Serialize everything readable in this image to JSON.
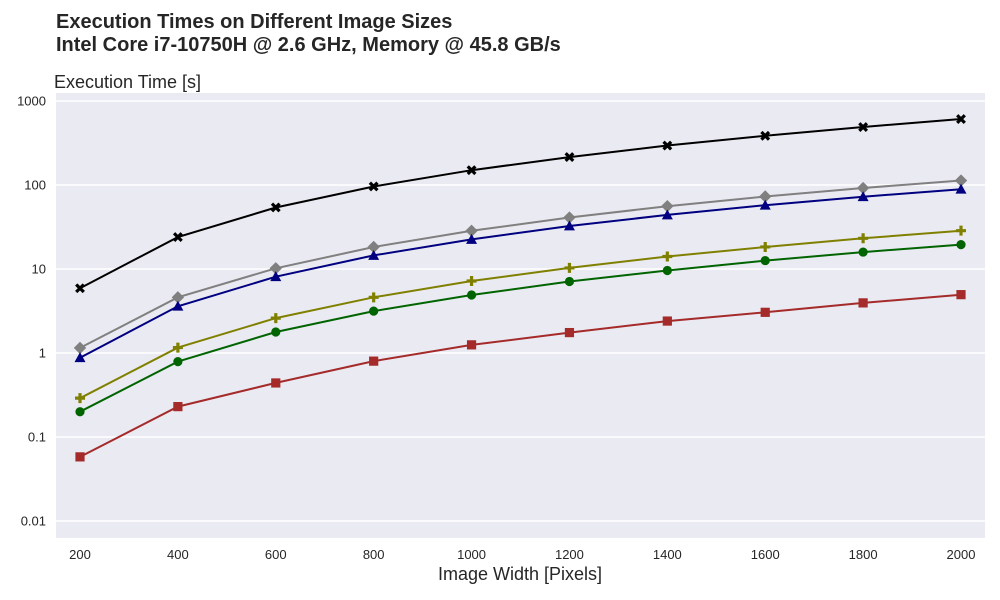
{
  "chart_data": {
    "type": "line",
    "title_line1": "Execution Times on Different Image Sizes",
    "title_line2": "Intel Core i7-10750H @ 2.6 GHz, Memory @ 45.8 GB/s",
    "xlabel": "Image Width [Pixels]",
    "ylabel": "Execution Time [s]",
    "yscale": "log",
    "ylim": [
      0.01,
      1000
    ],
    "xlim": [
      200,
      2000
    ],
    "grid": true,
    "x": [
      200,
      400,
      600,
      800,
      1000,
      1200,
      1400,
      1600,
      1800,
      2000
    ],
    "x_ticks": [
      "200",
      "400",
      "600",
      "800",
      "1000",
      "1200",
      "1400",
      "1600",
      "1800",
      "2000"
    ],
    "y_ticks": [
      {
        "value": 0.01,
        "label": "0.01"
      },
      {
        "value": 0.1,
        "label": "0.1"
      },
      {
        "value": 1,
        "label": "1"
      },
      {
        "value": 10,
        "label": "10"
      },
      {
        "value": 100,
        "label": "100"
      },
      {
        "value": 1000,
        "label": "1000"
      }
    ],
    "series": [
      {
        "color": "#000000",
        "marker": "x",
        "values": [
          5.9,
          24,
          54,
          96,
          150,
          215,
          295,
          385,
          490,
          610
        ]
      },
      {
        "color": "#808080",
        "marker": "diamond",
        "values": [
          1.15,
          4.6,
          10.2,
          18.3,
          28.5,
          41,
          56,
          73,
          92,
          113
        ]
      },
      {
        "color": "#000080",
        "marker": "triangle",
        "values": [
          0.88,
          3.6,
          8.1,
          14.5,
          22.5,
          32.5,
          44,
          57.5,
          72.5,
          89
        ]
      },
      {
        "color": "#808000",
        "marker": "plus",
        "values": [
          0.29,
          1.16,
          2.6,
          4.6,
          7.2,
          10.3,
          14.1,
          18.3,
          23.2,
          28.6
        ]
      },
      {
        "color": "#006400",
        "marker": "circle",
        "values": [
          0.2,
          0.79,
          1.78,
          3.15,
          4.9,
          7.1,
          9.6,
          12.6,
          15.9,
          19.5
        ]
      },
      {
        "color": "#a52a2a",
        "marker": "square",
        "values": [
          0.058,
          0.23,
          0.44,
          0.8,
          1.25,
          1.75,
          2.4,
          3.05,
          3.95,
          4.95
        ]
      }
    ]
  }
}
